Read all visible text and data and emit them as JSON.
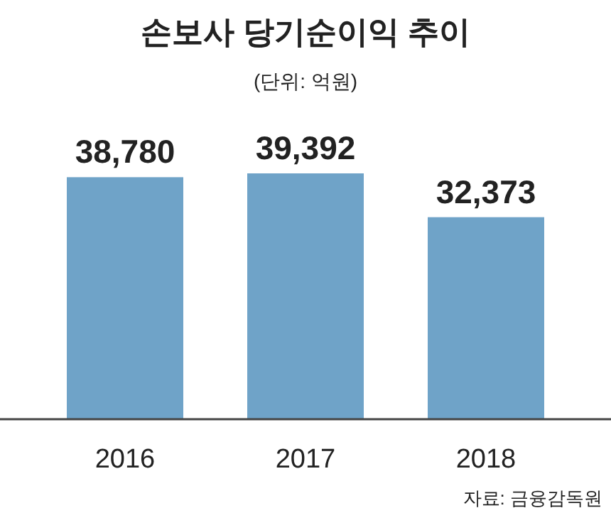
{
  "chart_data": {
    "type": "bar",
    "title": "손보사 당기순이익 추이",
    "subtitle": "(단위: 억원)",
    "categories": [
      "2016",
      "2017",
      "2018"
    ],
    "values": [
      38780,
      39392,
      32373
    ],
    "color": "#6fa3c8",
    "value_labels": [
      "38,780",
      "39,392",
      "32,373"
    ],
    "annotations": [
      "자료: 금융감독원"
    ]
  }
}
